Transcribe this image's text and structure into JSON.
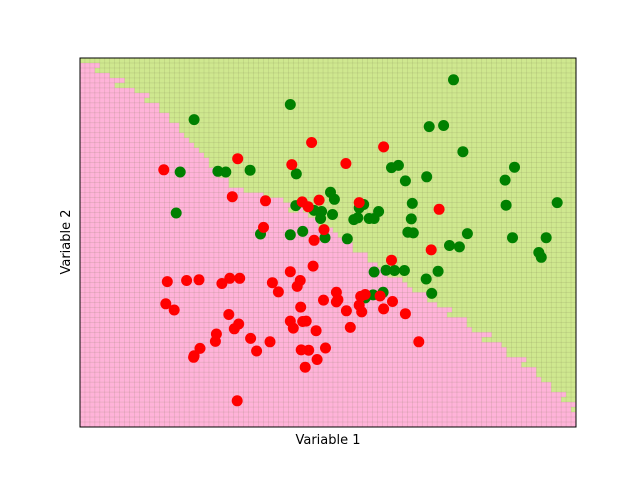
{
  "chart_data": {
    "type": "scatter",
    "title": "",
    "xlabel": "Variable 1",
    "ylabel": "Variable 2",
    "xlim": [
      0,
      100
    ],
    "ylim": [
      0,
      100
    ],
    "xticks": "hidden",
    "yticks": "hidden",
    "background": {
      "type": "decision-region-grid",
      "regions": [
        {
          "label": "class-red-region",
          "color": "#ffb3d9"
        },
        {
          "label": "class-green-region",
          "color": "#cfe88f"
        }
      ]
    },
    "series": [
      {
        "color": "#008000",
        "points": [
          [
            75.3,
            94.1
          ],
          [
            42.4,
            87.4
          ],
          [
            23.0,
            83.3
          ],
          [
            70.4,
            81.4
          ],
          [
            73.3,
            81.7
          ],
          [
            77.2,
            74.6
          ],
          [
            62.8,
            70.3
          ],
          [
            64.2,
            70.9
          ],
          [
            43.6,
            68.6
          ],
          [
            20.2,
            69.1
          ],
          [
            27.8,
            69.3
          ],
          [
            34.3,
            69.6
          ],
          [
            87.6,
            70.4
          ],
          [
            69.9,
            67.8
          ],
          [
            65.6,
            66.7
          ],
          [
            29.4,
            69.1
          ],
          [
            85.7,
            66.9
          ],
          [
            50.5,
            63.6
          ],
          [
            51.3,
            61.7
          ],
          [
            57.2,
            60.3
          ],
          [
            67.0,
            60.6
          ],
          [
            85.9,
            60.1
          ],
          [
            56.3,
            59.4
          ],
          [
            60.2,
            58.4
          ],
          [
            96.2,
            60.8
          ],
          [
            48.7,
            58.4
          ],
          [
            50.9,
            57.6
          ],
          [
            55.2,
            56.2
          ],
          [
            47.2,
            58.7
          ],
          [
            43.5,
            60.0
          ],
          [
            66.8,
            56.4
          ],
          [
            58.3,
            56.5
          ],
          [
            59.3,
            56.5
          ],
          [
            56.0,
            56.7
          ],
          [
            19.4,
            58.0
          ],
          [
            48.5,
            56.5
          ],
          [
            42.4,
            52.1
          ],
          [
            44.9,
            53.0
          ],
          [
            36.4,
            52.3
          ],
          [
            66.1,
            52.8
          ],
          [
            67.2,
            52.6
          ],
          [
            78.1,
            52.4
          ],
          [
            87.2,
            51.3
          ],
          [
            53.9,
            51.0
          ],
          [
            49.4,
            51.3
          ],
          [
            74.5,
            49.2
          ],
          [
            76.5,
            48.8
          ],
          [
            94.0,
            51.3
          ],
          [
            92.5,
            47.3
          ],
          [
            93.0,
            46.0
          ],
          [
            65.4,
            42.4
          ],
          [
            61.7,
            42.5
          ],
          [
            72.2,
            42.2
          ],
          [
            63.4,
            42.4
          ],
          [
            59.3,
            42.0
          ],
          [
            69.8,
            40.1
          ],
          [
            70.9,
            36.2
          ],
          [
            61.1,
            36.5
          ],
          [
            59.1,
            35.8
          ],
          [
            57.5,
            35.0
          ]
        ]
      },
      {
        "color": "#ff0000",
        "points": [
          [
            61.2,
            75.9
          ],
          [
            46.7,
            77.1
          ],
          [
            53.6,
            71.4
          ],
          [
            31.8,
            72.7
          ],
          [
            42.7,
            71.1
          ],
          [
            16.9,
            69.7
          ],
          [
            30.7,
            62.4
          ],
          [
            37.4,
            61.3
          ],
          [
            48.2,
            61.5
          ],
          [
            44.8,
            61.0
          ],
          [
            56.3,
            60.8
          ],
          [
            72.4,
            59.0
          ],
          [
            46.0,
            59.7
          ],
          [
            47.2,
            50.6
          ],
          [
            37.0,
            54.1
          ],
          [
            49.2,
            53.5
          ],
          [
            70.8,
            48.0
          ],
          [
            62.8,
            45.2
          ],
          [
            47.0,
            43.6
          ],
          [
            42.4,
            42.1
          ],
          [
            44.4,
            39.7
          ],
          [
            38.8,
            39.1
          ],
          [
            43.8,
            38.1
          ],
          [
            40.0,
            36.6
          ],
          [
            51.7,
            36.5
          ],
          [
            57.5,
            35.9
          ],
          [
            60.5,
            35.5
          ],
          [
            56.6,
            35.4
          ],
          [
            52.0,
            34.5
          ],
          [
            49.1,
            34.4
          ],
          [
            63.0,
            34.0
          ],
          [
            32.2,
            40.3
          ],
          [
            28.6,
            38.9
          ],
          [
            30.2,
            40.3
          ],
          [
            24.0,
            39.9
          ],
          [
            21.5,
            39.7
          ],
          [
            17.6,
            39.4
          ],
          [
            51.7,
            33.9
          ],
          [
            56.3,
            33.0
          ],
          [
            53.7,
            31.5
          ],
          [
            65.6,
            30.7
          ],
          [
            61.2,
            32.0
          ],
          [
            38.3,
            23.1
          ],
          [
            35.6,
            20.6
          ],
          [
            24.2,
            21.3
          ],
          [
            19.0,
            31.7
          ],
          [
            17.3,
            33.4
          ],
          [
            22.9,
            18.9
          ],
          [
            31.1,
            26.6
          ],
          [
            27.5,
            25.2
          ],
          [
            44.6,
            20.9
          ],
          [
            45.4,
            16.2
          ],
          [
            47.6,
            26.1
          ],
          [
            56.8,
            31.2
          ],
          [
            54.5,
            27.0
          ],
          [
            34.4,
            24.0
          ],
          [
            32.0,
            27.9
          ],
          [
            30.0,
            30.5
          ],
          [
            27.3,
            23.2
          ],
          [
            43.0,
            26.8
          ],
          [
            42.4,
            28.7
          ],
          [
            44.5,
            32.5
          ],
          [
            45.6,
            28.7
          ],
          [
            46.1,
            20.8
          ],
          [
            49.5,
            21.4
          ],
          [
            47.8,
            18.3
          ],
          [
            44.9,
            28.6
          ],
          [
            68.3,
            23.1
          ],
          [
            23.0,
            19.3
          ],
          [
            31.7,
            7.1
          ]
        ]
      }
    ]
  }
}
